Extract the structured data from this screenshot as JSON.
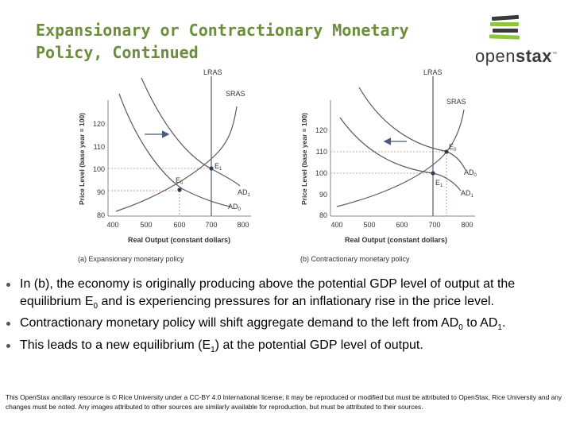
{
  "title": {
    "line1": "Expansionary or Contractionary Monetary",
    "line2": "Policy, Continued"
  },
  "logo": {
    "icon": "openstax-book-stack-icon",
    "text_a": "open",
    "text_b": "stax",
    "tm": "™"
  },
  "figure": {
    "panel_a": {
      "caption": "(a)  Expansionary monetary policy",
      "ylabel": "Price Level (base year = 100)",
      "xlabel": "Real Output (constant dollars)",
      "x_ticks": [
        "400",
        "500",
        "600",
        "700",
        "800"
      ],
      "y_ticks": [
        "80",
        "90",
        "100",
        "110",
        "120"
      ],
      "lras": "LRAS",
      "sras": "SRAS",
      "ad_left": {
        "main": "AD",
        "sub": "0"
      },
      "ad_right": {
        "main": "AD",
        "sub": "1"
      },
      "e_low": {
        "main": "E",
        "sub": "0"
      },
      "e_high": {
        "main": "E",
        "sub": "1"
      }
    },
    "panel_b": {
      "caption": "(b)  Contractionary monetary policy",
      "ylabel": "Price Level (base year = 100)",
      "xlabel": "Real Output (constant dollars)",
      "x_ticks": [
        "400",
        "500",
        "600",
        "700",
        "800"
      ],
      "y_ticks": [
        "80",
        "90",
        "100",
        "110",
        "120"
      ],
      "lras": "LRAS",
      "sras": "SRAS",
      "ad_high": {
        "main": "AD",
        "sub": "0"
      },
      "ad_low": {
        "main": "AD",
        "sub": "1"
      },
      "e_high": {
        "main": "E",
        "sub": "0"
      },
      "e_low": {
        "main": "E",
        "sub": "1"
      }
    }
  },
  "bullets": [
    {
      "before": "In (b), the economy is originally producing above the potential GDP level of output at the equilibrium E",
      "sub": "0",
      "after": " and is experiencing pressures for an inflationary rise in the price level."
    },
    {
      "before": "Contractionary monetary policy will shift aggregate demand to the left from AD",
      "sub": "0",
      "mid": " to AD",
      "sub2": "1",
      "after": "."
    },
    {
      "before": "This leads to a new equilibrium (E",
      "sub": "1",
      "after": ") at the potential GDP level of output."
    }
  ],
  "footer": "This OpenStax ancillary resource is © Rice University under a CC-BY 4.0 International license; it may be reproduced or modified but must be attributed to OpenStax, Rice University and any changes must be noted.  Any images attributed to other sources are similarly available for reproduction, but must be attributed to their sources.",
  "colors": {
    "title": "#6b8e3a",
    "curve": "#5a5a5a",
    "axis": "#888888",
    "guide": "#e07a7a",
    "arrow": "#4a5a7a",
    "logo_green": "#8cc63f",
    "logo_dark": "#3a3a3a"
  }
}
